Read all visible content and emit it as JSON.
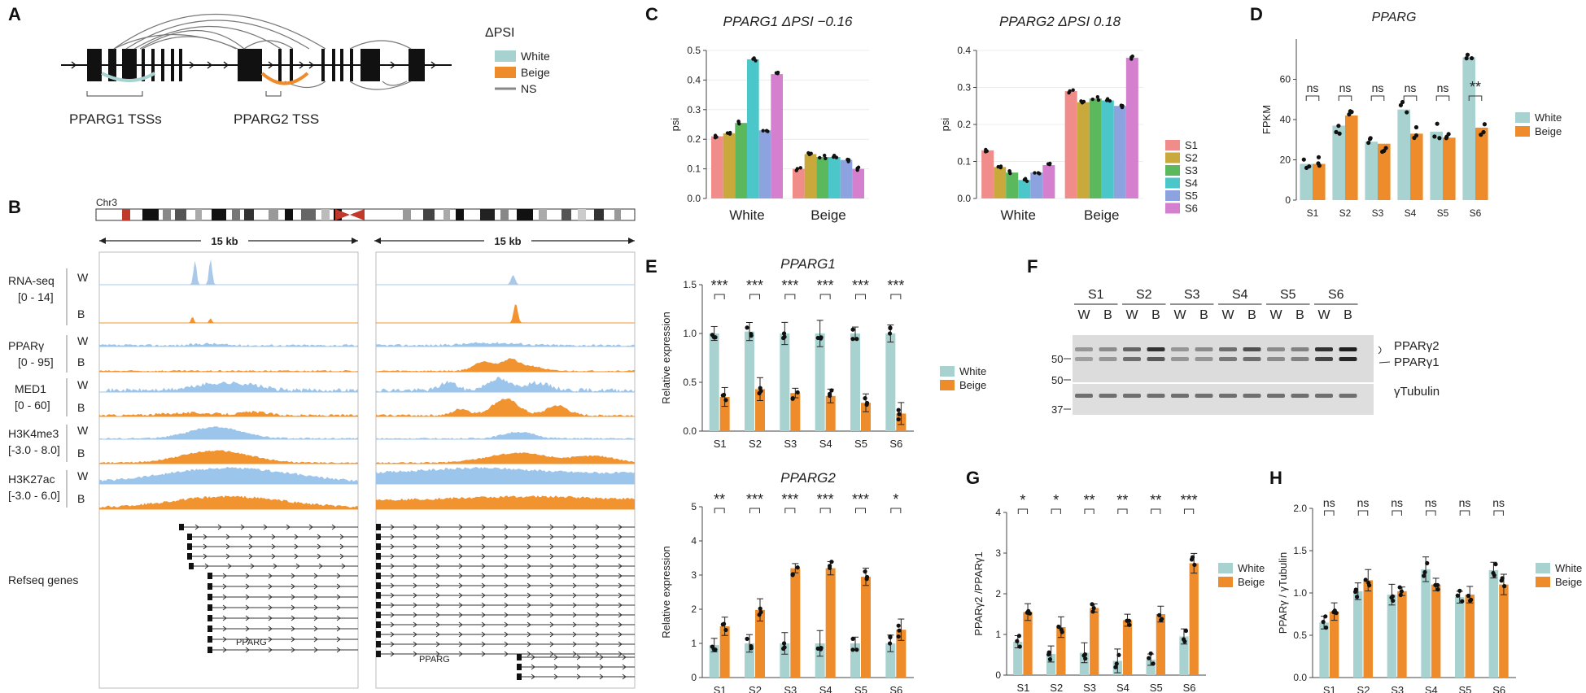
{
  "colors": {
    "white": "#a8d2d0",
    "beige": "#ee8b2a",
    "ns": "#888888",
    "rna_white": "#a9c8ea",
    "track_blue": "#9cc5ec",
    "track_orange": "#f19430",
    "S1": "#f08c8a",
    "S2": "#c9a93b",
    "S3": "#5cb85c",
    "S4": "#4cc7c9",
    "S5": "#8ca3e0",
    "S6": "#d57fcf"
  },
  "panel_labels": [
    "A",
    "B",
    "C",
    "D",
    "E",
    "F",
    "G",
    "H"
  ],
  "panelA": {
    "legend_title": "ΔPSI",
    "legend_items": [
      "White",
      "Beige",
      "NS"
    ],
    "label_pparg1": "PPARG1 TSSs",
    "label_pparg2": "PPARG2 TSS"
  },
  "panelB": {
    "chrom": "Chr3",
    "span_left": "15 kb",
    "span_right": "15 kb",
    "tracks": [
      {
        "name": "RNA-seq",
        "range": "[0 - 14]"
      },
      {
        "name": "PPARγ",
        "range": "[0 - 95]"
      },
      {
        "name": "MED1",
        "range": "[0 - 60]"
      },
      {
        "name": "H3K4me3",
        "range": "[-3.0 - 8.0]"
      },
      {
        "name": "H3K27ac",
        "range": "[-3.0 - 6.0]"
      }
    ],
    "cond_w": "W",
    "cond_b": "B",
    "refseq": "Refseq genes",
    "gene_left": "PPARG",
    "gene_right": "PPARG"
  },
  "chart_data": [
    {
      "id": "C1",
      "type": "bar",
      "title": "PPARG1 ΔPSI −0.16",
      "ylabel": "psi",
      "categories": [
        "White",
        "Beige"
      ],
      "series": [
        {
          "name": "S1",
          "values": [
            0.21,
            0.1
          ]
        },
        {
          "name": "S2",
          "values": [
            0.22,
            0.15
          ]
        },
        {
          "name": "S3",
          "values": [
            0.255,
            0.14
          ]
        },
        {
          "name": "S4",
          "values": [
            0.47,
            0.14
          ]
        },
        {
          "name": "S5",
          "values": [
            0.23,
            0.13
          ]
        },
        {
          "name": "S6",
          "values": [
            0.42,
            0.1
          ]
        }
      ],
      "ylim": [
        0,
        0.5
      ],
      "yticks": [
        "0.0",
        "0.1",
        "0.2",
        "0.3",
        "0.4",
        "0.5"
      ]
    },
    {
      "id": "C2",
      "type": "bar",
      "title": "PPARG2 ΔPSI 0.18",
      "ylabel": "psi",
      "categories": [
        "White",
        "Beige"
      ],
      "series": [
        {
          "name": "S1",
          "values": [
            0.13,
            0.29
          ]
        },
        {
          "name": "S2",
          "values": [
            0.085,
            0.26
          ]
        },
        {
          "name": "S3",
          "values": [
            0.07,
            0.27
          ]
        },
        {
          "name": "S4",
          "values": [
            0.05,
            0.265
          ]
        },
        {
          "name": "S5",
          "values": [
            0.07,
            0.25
          ]
        },
        {
          "name": "S6",
          "values": [
            0.09,
            0.38
          ]
        }
      ],
      "ylim": [
        0,
        0.4
      ],
      "yticks": [
        "0.0",
        "0.1",
        "0.2",
        "0.3",
        "0.4"
      ],
      "legend": [
        "S1",
        "S2",
        "S3",
        "S4",
        "S5",
        "S6"
      ]
    },
    {
      "id": "D",
      "type": "bar",
      "title": "PPARG",
      "ylabel": "FPKM",
      "categories": [
        "S1",
        "S2",
        "S3",
        "S4",
        "S5",
        "S6"
      ],
      "series": [
        {
          "name": "White",
          "values": [
            18,
            37,
            29,
            45,
            34,
            71
          ]
        },
        {
          "name": "Beige",
          "values": [
            18,
            42,
            28,
            33,
            31,
            36
          ]
        }
      ],
      "ylim": [
        0,
        80
      ],
      "yticks": [
        "0",
        "20",
        "40",
        "60"
      ],
      "sig": [
        "ns",
        "ns",
        "ns",
        "ns",
        "ns",
        "**"
      ],
      "legend": [
        "White",
        "Beige"
      ]
    },
    {
      "id": "E1",
      "type": "bar",
      "title": "PPARG1",
      "ylabel": "Relative expression",
      "categories": [
        "S1",
        "S2",
        "S3",
        "S4",
        "S5",
        "S6"
      ],
      "series": [
        {
          "name": "White",
          "values": [
            1.0,
            1.02,
            1.0,
            1.0,
            1.0,
            1.0
          ]
        },
        {
          "name": "Beige",
          "values": [
            0.35,
            0.43,
            0.39,
            0.36,
            0.29,
            0.18
          ]
        }
      ],
      "ylim": [
        0,
        1.5
      ],
      "yticks": [
        "0.0",
        "0.5",
        "1.0",
        "1.5"
      ],
      "sig": [
        "***",
        "***",
        "***",
        "***",
        "***",
        "***"
      ],
      "legend": [
        "White",
        "Beige"
      ]
    },
    {
      "id": "E2",
      "type": "bar",
      "title": "PPARG2",
      "ylabel": "Relative expression",
      "categories": [
        "S1",
        "S2",
        "S3",
        "S4",
        "S5",
        "S6"
      ],
      "series": [
        {
          "name": "White",
          "values": [
            0.95,
            1.0,
            1.0,
            1.0,
            1.0,
            1.0
          ]
        },
        {
          "name": "Beige",
          "values": [
            1.5,
            1.98,
            3.2,
            3.2,
            2.95,
            1.4
          ]
        }
      ],
      "ylim": [
        0,
        5
      ],
      "yticks": [
        "0",
        "1",
        "2",
        "3",
        "4",
        "5"
      ],
      "sig": [
        "**",
        "***",
        "***",
        "***",
        "***",
        "*"
      ]
    },
    {
      "id": "G",
      "type": "bar",
      "title": "",
      "ylabel": "PPARγ2 /PPARγ1",
      "categories": [
        "S1",
        "S2",
        "S3",
        "S4",
        "S5",
        "S6"
      ],
      "series": [
        {
          "name": "White",
          "values": [
            0.82,
            0.52,
            0.55,
            0.35,
            0.38,
            0.95
          ]
        },
        {
          "name": "Beige",
          "values": [
            1.55,
            1.18,
            1.65,
            1.35,
            1.5,
            2.75
          ]
        }
      ],
      "ylim": [
        0,
        4
      ],
      "yticks": [
        "0",
        "1",
        "2",
        "3",
        "4"
      ],
      "sig": [
        "*",
        "*",
        "**",
        "**",
        "**",
        "***"
      ],
      "legend": [
        "White",
        "Beige"
      ]
    },
    {
      "id": "H",
      "type": "bar",
      "title": "",
      "ylabel": "PPARγ / γTubulin",
      "categories": [
        "S1",
        "S2",
        "S3",
        "S4",
        "S5",
        "S6"
      ],
      "series": [
        {
          "name": "White",
          "values": [
            0.65,
            1.02,
            0.98,
            1.28,
            0.95,
            1.27
          ]
        },
        {
          "name": "Beige",
          "values": [
            0.78,
            1.15,
            1.02,
            1.1,
            0.98,
            1.1
          ]
        }
      ],
      "ylim": [
        0,
        2
      ],
      "yticks": [
        "0.0",
        "0.5",
        "1.0",
        "1.5",
        "2.0"
      ],
      "sig": [
        "ns",
        "ns",
        "ns",
        "ns",
        "ns",
        "ns"
      ],
      "legend": [
        "White",
        "Beige"
      ]
    }
  ],
  "panelF": {
    "samples": [
      "S1",
      "S2",
      "S3",
      "S4",
      "S5",
      "S6"
    ],
    "lanes": [
      "W",
      "B",
      "W",
      "B",
      "W",
      "B",
      "W",
      "B",
      "W",
      "B",
      "W",
      "B"
    ],
    "mw": [
      "50",
      "50",
      "37"
    ],
    "band_p2": "PPARγ2",
    "band_p1": "PPARγ1",
    "band_tub": "γTubulin"
  }
}
